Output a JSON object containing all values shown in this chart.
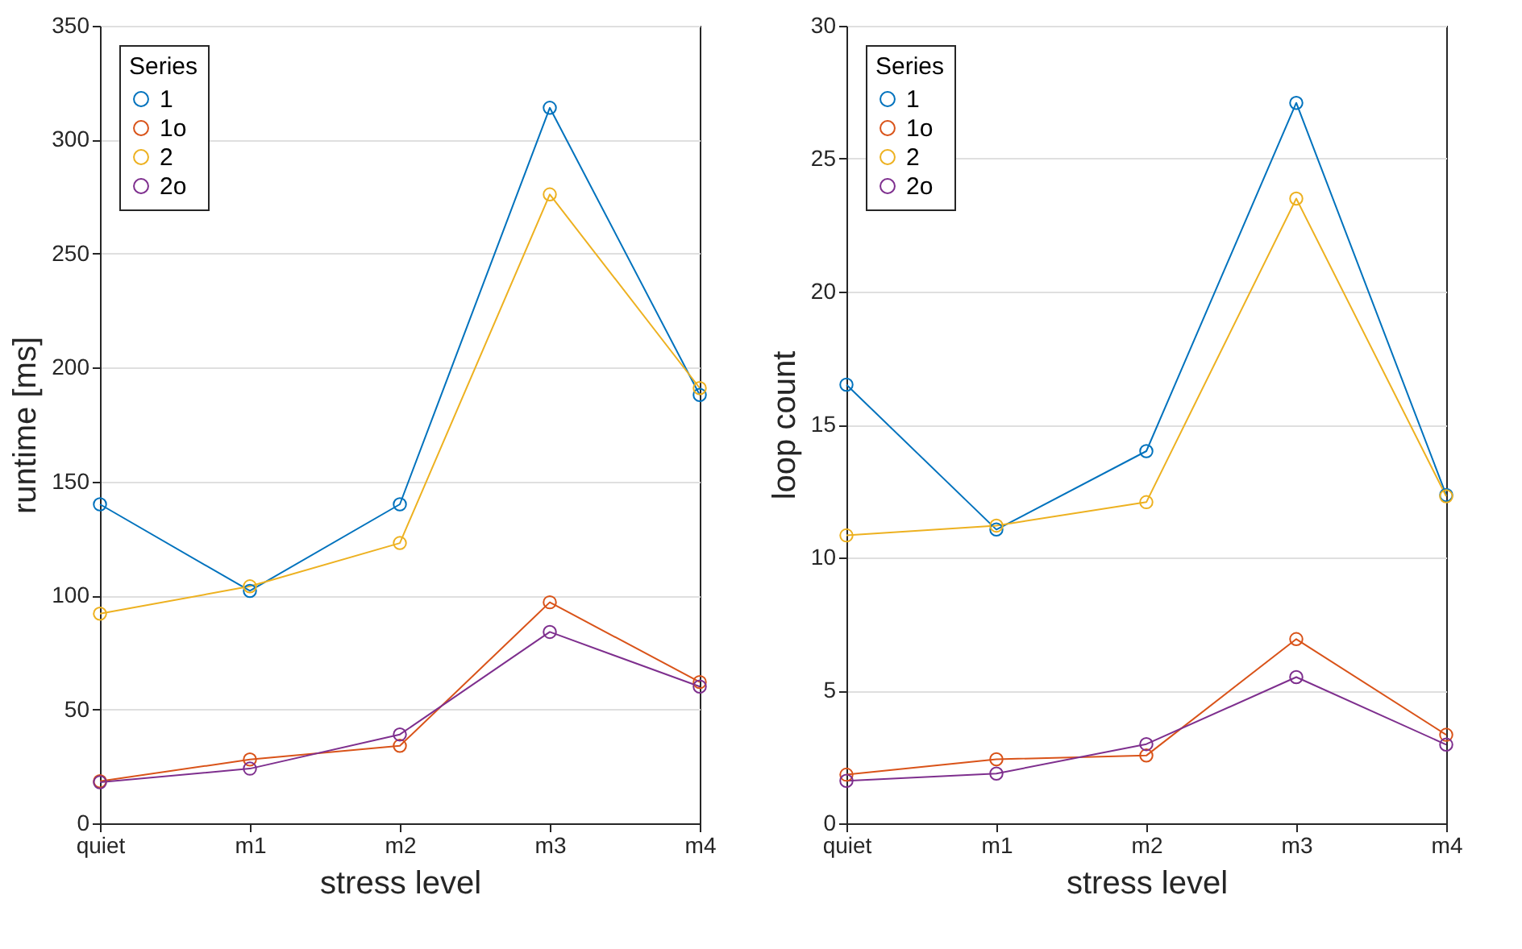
{
  "chart_data": [
    {
      "type": "line",
      "xlabel": "stress level",
      "ylabel": "runtime [ms]",
      "legend_title": "Series",
      "legend": "top left",
      "grid": "y",
      "marker": "circle",
      "line_style": "solid",
      "categories": [
        "quiet",
        "m1",
        "m2",
        "m3",
        "m4"
      ],
      "ylim": [
        0,
        350
      ],
      "yticks": [
        0,
        50,
        100,
        150,
        200,
        250,
        300,
        350
      ],
      "series": [
        {
          "name": "1",
          "color": "#0072bd",
          "values": [
            140,
            102,
            140,
            314,
            188
          ]
        },
        {
          "name": "1o",
          "color": "#d95319",
          "values": [
            18.5,
            28,
            34,
            97,
            62
          ]
        },
        {
          "name": "2",
          "color": "#edb120",
          "values": [
            92,
            104,
            123,
            276,
            191
          ]
        },
        {
          "name": "2o",
          "color": "#7e2f8e",
          "values": [
            18,
            24,
            39,
            84,
            60
          ]
        }
      ]
    },
    {
      "type": "line",
      "xlabel": "stress level",
      "ylabel": "loop count",
      "legend_title": "Series",
      "legend": "top left",
      "grid": "y",
      "marker": "circle",
      "line_style": "solid",
      "categories": [
        "quiet",
        "m1",
        "m2",
        "m3",
        "m4"
      ],
      "ylim": [
        0,
        30
      ],
      "yticks": [
        0,
        5,
        10,
        15,
        20,
        25,
        30
      ],
      "series": [
        {
          "name": "1",
          "color": "#0072bd",
          "values": [
            16.5,
            11.05,
            14,
            27.1,
            12.35
          ]
        },
        {
          "name": "1o",
          "color": "#d95319",
          "values": [
            1.83,
            2.41,
            2.55,
            6.93,
            3.33
          ]
        },
        {
          "name": "2",
          "color": "#edb120",
          "values": [
            10.83,
            11.2,
            12.08,
            23.5,
            12.3
          ]
        },
        {
          "name": "2o",
          "color": "#7e2f8e",
          "values": [
            1.6,
            1.87,
            2.98,
            5.5,
            2.96
          ]
        }
      ]
    }
  ]
}
